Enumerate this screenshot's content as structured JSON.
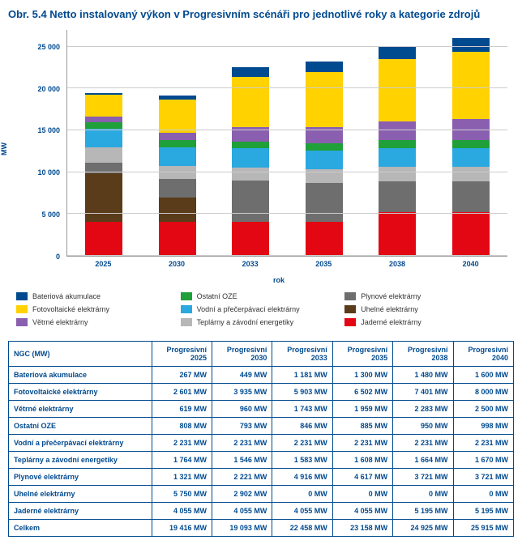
{
  "title": "Obr. 5.4 Netto instalovaný výkon v Progresivním scénáři pro jednotlivé roky a kategorie zdrojů",
  "chart": {
    "type": "stacked-bar",
    "ylabel": "MW",
    "xlabel": "rok",
    "ymax": 27000,
    "yticks": [
      0,
      5000,
      10000,
      15000,
      20000,
      25000
    ],
    "ytick_labels": [
      "0",
      "5 000",
      "10 000",
      "15 000",
      "20 000",
      "25 000"
    ],
    "categories": [
      "2025",
      "2030",
      "2033",
      "2035",
      "2038",
      "2040"
    ],
    "series_order": [
      "jaderne",
      "uhelne",
      "plynove",
      "teplarny",
      "vodni",
      "ostatni",
      "vetrne",
      "fotovoltaicke",
      "bateriova"
    ],
    "series": {
      "bateriova": {
        "label": "Bateriová akumulace",
        "color": "#004a8f",
        "vals": [
          267,
          449,
          1181,
          1300,
          1480,
          1600
        ]
      },
      "fotovoltaicke": {
        "label": "Fotovoltaické elektrárny",
        "color": "#ffd200",
        "vals": [
          2601,
          3935,
          5903,
          6502,
          7401,
          8000
        ]
      },
      "vetrne": {
        "label": "Větrné elektrárny",
        "color": "#8a5fb0",
        "vals": [
          619,
          960,
          1743,
          1959,
          2283,
          2500
        ]
      },
      "ostatni": {
        "label": "Ostatní OZE",
        "color": "#1fa038",
        "vals": [
          808,
          793,
          846,
          885,
          950,
          998
        ]
      },
      "vodni": {
        "label": "Vodní a přečerpávací elektrárny",
        "color": "#2aa8e0",
        "vals": [
          2231,
          2231,
          2231,
          2231,
          2231,
          2231
        ]
      },
      "teplarny": {
        "label": "Teplárny a závodní energetiky",
        "color": "#b7b7b7",
        "vals": [
          1764,
          1546,
          1583,
          1608,
          1664,
          1670
        ]
      },
      "plynove": {
        "label": "Plynové elektrárny",
        "color": "#6e6e6e",
        "vals": [
          1321,
          2221,
          4916,
          4617,
          3721,
          3721
        ]
      },
      "uhelne": {
        "label": "Uhelné elektrárny",
        "color": "#5a3b1a",
        "vals": [
          5750,
          2902,
          0,
          0,
          0,
          0
        ]
      },
      "jaderne": {
        "label": "Jaderné elektrárny",
        "color": "#e30613",
        "vals": [
          4055,
          4055,
          4055,
          4055,
          5195,
          5195
        ]
      }
    },
    "legend_order": [
      "bateriova",
      "ostatni",
      "plynove",
      "fotovoltaicke",
      "vodni",
      "uhelne",
      "vetrne",
      "teplarny",
      "jaderne"
    ]
  },
  "table": {
    "header_first": "NGC (MW)",
    "col_headers": [
      "Progresivní 2025",
      "Progresivní 2030",
      "Progresivní 2033",
      "Progresivní 2035",
      "Progresivní 2038",
      "Progresivní 2040"
    ],
    "rows": [
      {
        "label": "Bateriová akumulace",
        "cells": [
          "267 MW",
          "449 MW",
          "1 181 MW",
          "1 300 MW",
          "1 480 MW",
          "1 600 MW"
        ]
      },
      {
        "label": "Fotovoltaické elektrárny",
        "cells": [
          "2 601 MW",
          "3 935 MW",
          "5 903 MW",
          "6 502 MW",
          "7 401 MW",
          "8 000 MW"
        ]
      },
      {
        "label": "Větrné elektrárny",
        "cells": [
          "619 MW",
          "960 MW",
          "1 743 MW",
          "1 959 MW",
          "2 283 MW",
          "2 500 MW"
        ]
      },
      {
        "label": "Ostatní OZE",
        "cells": [
          "808 MW",
          "793 MW",
          "846 MW",
          "885 MW",
          "950 MW",
          "998 MW"
        ]
      },
      {
        "label": "Vodní a přečerpávací elektrárny",
        "cells": [
          "2 231 MW",
          "2 231 MW",
          "2 231 MW",
          "2 231 MW",
          "2 231 MW",
          "2 231 MW"
        ]
      },
      {
        "label": "Teplárny a závodní energetiky",
        "cells": [
          "1 764 MW",
          "1 546 MW",
          "1 583 MW",
          "1 608 MW",
          "1 664 MW",
          "1 670 MW"
        ]
      },
      {
        "label": "Plynové elektrárny",
        "cells": [
          "1 321 MW",
          "2 221 MW",
          "4 916 MW",
          "4 617 MW",
          "3 721 MW",
          "3 721 MW"
        ]
      },
      {
        "label": "Uhelné elektrárny",
        "cells": [
          "5 750 MW",
          "2 902 MW",
          "0 MW",
          "0 MW",
          "0 MW",
          "0 MW"
        ]
      },
      {
        "label": "Jaderné elektrárny",
        "cells": [
          "4 055 MW",
          "4 055 MW",
          "4 055 MW",
          "4 055 MW",
          "5 195 MW",
          "5 195 MW"
        ]
      },
      {
        "label": "Celkem",
        "cells": [
          "19 416 MW",
          "19 093 MW",
          "22 458 MW",
          "23 158 MW",
          "24 925 MW",
          "25 915 MW"
        ]
      }
    ]
  }
}
